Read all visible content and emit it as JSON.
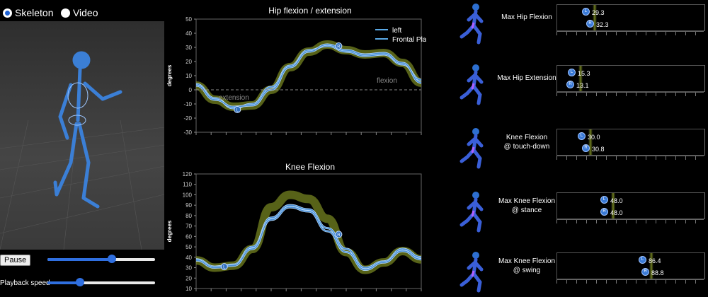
{
  "view_mode": {
    "skeleton_label": "Skeleton",
    "video_label": "Video",
    "selected": "Skeleton"
  },
  "controls": {
    "pause_label": "Pause",
    "playback_label": "Playback speed",
    "position_fraction": 0.6,
    "speed_fraction": 0.3
  },
  "chart_hip": {
    "title": "Hip flexion / extension",
    "ylabel": "degrees",
    "yticks": [
      "50",
      "40",
      "30",
      "20",
      "10",
      "0",
      "-10",
      "-20",
      "-30"
    ],
    "legend": [
      "left",
      "Frontal Plane"
    ],
    "annotation_extension": "extension",
    "annotation_flexion": "flexion",
    "marker_l": "L",
    "marker_r": "R"
  },
  "chart_knee": {
    "title": "Knee Flexion",
    "ylabel": "degrees",
    "yticks": [
      "120",
      "110",
      "100",
      "90",
      "80",
      "70",
      "60",
      "50",
      "40",
      "30",
      "20",
      "10"
    ],
    "marker_l": "L",
    "marker_r": "R"
  },
  "chart_data": [
    {
      "type": "line",
      "title": "Hip flexion / extension",
      "ylabel": "degrees",
      "ylim": [
        -30,
        50
      ],
      "series": [
        {
          "name": "left",
          "y": [
            4,
            -6,
            -13,
            -10,
            2,
            17,
            28,
            31,
            27,
            24,
            25,
            18,
            7
          ]
        },
        {
          "name": "Frontal Plane",
          "y": [
            3,
            -7,
            -12,
            -11,
            0,
            16,
            27,
            32,
            28,
            25,
            26,
            19,
            5
          ]
        }
      ]
    },
    {
      "type": "line",
      "title": "Knee Flexion",
      "ylabel": "degrees",
      "ylim": [
        10,
        120
      ],
      "series": [
        {
          "y": [
            38,
            31,
            33,
            50,
            78,
            90,
            86,
            68,
            48,
            30,
            36,
            48,
            40
          ]
        },
        {
          "y": [
            37,
            30,
            32,
            48,
            76,
            88,
            84,
            65,
            45,
            28,
            35,
            46,
            38
          ]
        }
      ]
    }
  ],
  "metrics": [
    {
      "label1": "Max Hip Flexion",
      "label2": "",
      "l": "29.3",
      "r": "32.3"
    },
    {
      "label1": "Max Hip Extension",
      "label2": "",
      "l": "15.3",
      "r": "13.1"
    },
    {
      "label1": "Knee Flexion",
      "label2": "@ touch-down",
      "l": "30.0",
      "r": "30.8"
    },
    {
      "label1": "Max Knee Flexion",
      "label2": "@ stance",
      "l": "48.0",
      "r": "48.0"
    },
    {
      "label1": "Max Knee Flexion",
      "label2": "@ swing",
      "l": "86.4",
      "r": "88.8"
    }
  ],
  "colors": {
    "accent": "#2f6fe0",
    "curve": "#5aa9e6",
    "band": "#8a9a2a"
  }
}
